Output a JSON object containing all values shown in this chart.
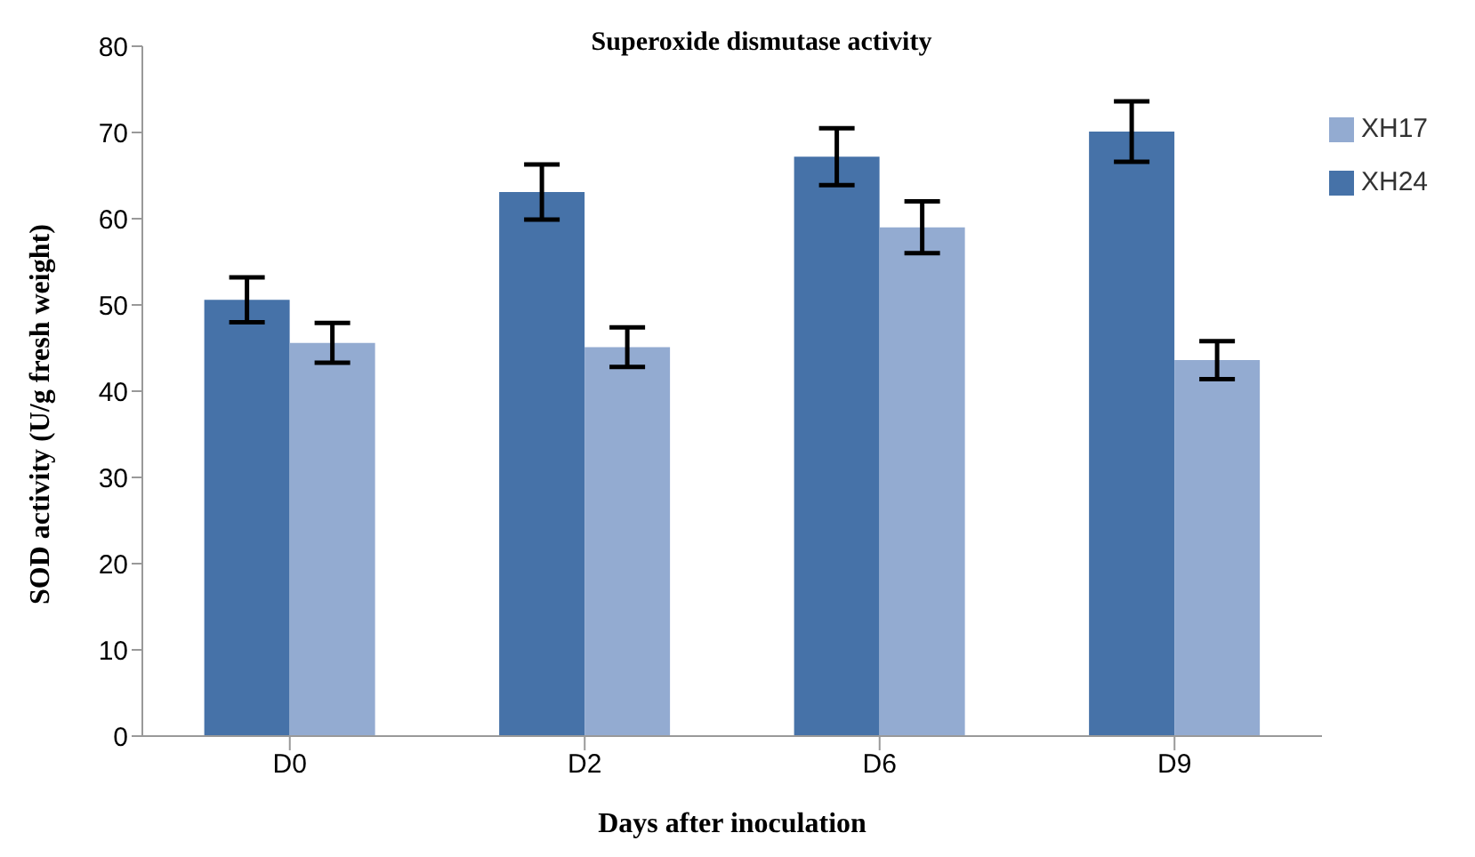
{
  "chart_data": {
    "type": "bar",
    "title": "Superoxide dismutase activity",
    "xlabel": "Days after inoculation",
    "ylabel": "SOD activity (U/g fresh weight)",
    "categories": [
      "D0",
      "D2",
      "D6",
      "D9"
    ],
    "series": [
      {
        "name": "XH24",
        "color": "#4672a8",
        "values": [
          50.6,
          63.1,
          67.2,
          70.1
        ],
        "errors": [
          2.6,
          3.2,
          3.3,
          3.5
        ]
      },
      {
        "name": "XH17",
        "color": "#93abd1",
        "values": [
          45.6,
          45.1,
          59.0,
          43.6
        ],
        "errors": [
          2.3,
          2.3,
          3.0,
          2.2
        ]
      }
    ],
    "ylim": [
      0,
      80
    ],
    "yticks": [
      0,
      10,
      20,
      30,
      40,
      50,
      60,
      70,
      80
    ],
    "grid": false,
    "legend": "top right"
  }
}
